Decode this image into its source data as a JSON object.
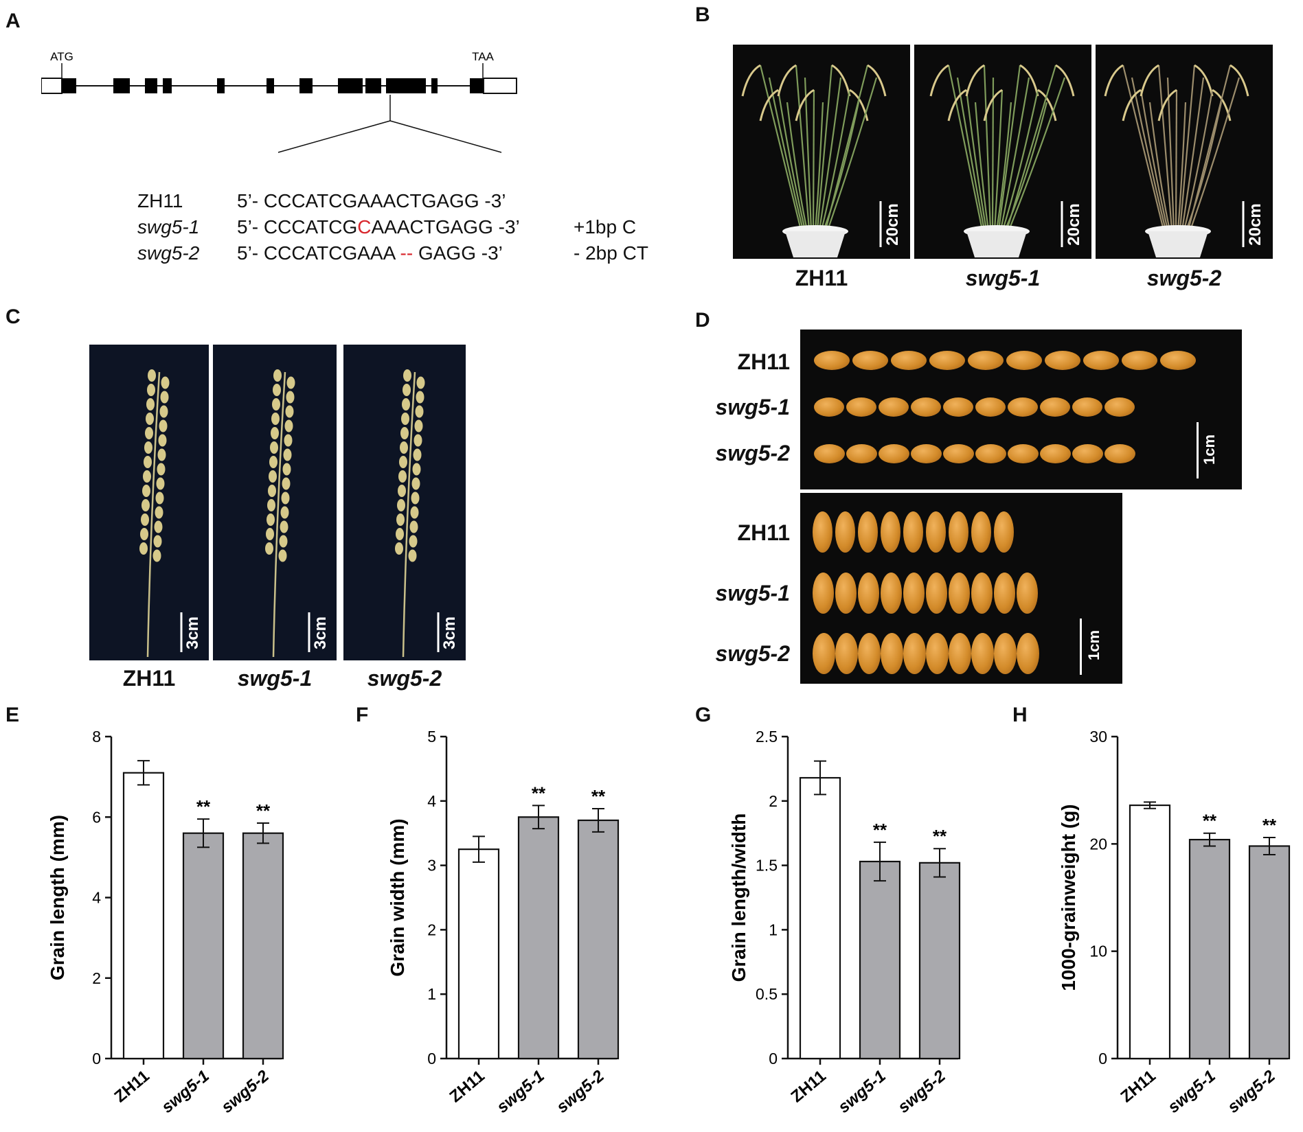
{
  "panels": {
    "A": "A",
    "B": "B",
    "C": "C",
    "D": "D",
    "E": "E",
    "F": "F",
    "G": "G",
    "H": "H"
  },
  "gene": {
    "start_codon": "ATG",
    "stop_codon": "TAA",
    "sequences": [
      {
        "name": "ZH11",
        "italic": false,
        "pre": "5’- CCCATCGAAACTGAGG -3’",
        "mark": "",
        "post": "",
        "note": ""
      },
      {
        "name": "swg5-1",
        "italic": true,
        "pre": "5’- CCCATCG",
        "mark": "C",
        "post": "AAACTGAGG -3’",
        "note": "+1bp C"
      },
      {
        "name": "swg5-2",
        "italic": true,
        "pre": "5’- CCCATCGAAA ",
        "mark": "--",
        "post": " GAGG -3’",
        "note": "- 2bp CT"
      }
    ]
  },
  "plants": {
    "labels": [
      "ZH11",
      "swg5-1",
      "swg5-2"
    ],
    "scale": "20cm"
  },
  "panicles": {
    "labels": [
      "ZH11",
      "swg5-1",
      "swg5-2"
    ],
    "scale": "3cm"
  },
  "grains": {
    "top_labels": [
      "ZH11",
      "swg5-1",
      "swg5-2"
    ],
    "bottom_labels": [
      "ZH11",
      "swg5-1",
      "swg5-2"
    ],
    "scale": "1cm"
  },
  "colors": {
    "wild_type": "#ffffff",
    "mutant": "#a9a9ad",
    "mutation": "#d8262c"
  },
  "chart_data": [
    {
      "type": "bar",
      "panel": "E",
      "categories": [
        "ZH11",
        "swg5-1",
        "swg5-2"
      ],
      "values": [
        7.1,
        5.6,
        5.6
      ],
      "errors": [
        0.3,
        0.35,
        0.25
      ],
      "sig": [
        "",
        "**",
        "**"
      ],
      "ylabel": "Grain  length (mm)",
      "ylim": [
        0,
        8
      ],
      "ticks": [
        "0",
        "2",
        "4",
        "6",
        "8"
      ]
    },
    {
      "type": "bar",
      "panel": "F",
      "categories": [
        "ZH11",
        "swg5-1",
        "swg5-2"
      ],
      "values": [
        3.25,
        3.75,
        3.7
      ],
      "errors": [
        0.2,
        0.18,
        0.18
      ],
      "sig": [
        "",
        "**",
        "**"
      ],
      "ylabel": "Grain width (mm)",
      "ylim": [
        0,
        5
      ],
      "ticks": [
        "0",
        "1",
        "2",
        "3",
        "4",
        "5"
      ]
    },
    {
      "type": "bar",
      "panel": "G",
      "categories": [
        "ZH11",
        "swg5-1",
        "swg5-2"
      ],
      "values": [
        2.18,
        1.53,
        1.52
      ],
      "errors": [
        0.13,
        0.15,
        0.11
      ],
      "sig": [
        "",
        "**",
        "**"
      ],
      "ylabel": "Grain length/width",
      "ylim": [
        0,
        2.5
      ],
      "ticks": [
        "0",
        "0.5",
        "1",
        "1.5",
        "2",
        "2.5"
      ]
    },
    {
      "type": "bar",
      "panel": "H",
      "categories": [
        "ZH11",
        "swg5-1",
        "swg5-2"
      ],
      "values": [
        23.6,
        20.4,
        19.8
      ],
      "errors": [
        0.3,
        0.6,
        0.8
      ],
      "sig": [
        "",
        "**",
        "**"
      ],
      "ylabel": "1000-grainweight (g)",
      "ylim": [
        0,
        30
      ],
      "ticks": [
        "0",
        "10",
        "20",
        "30"
      ]
    }
  ]
}
